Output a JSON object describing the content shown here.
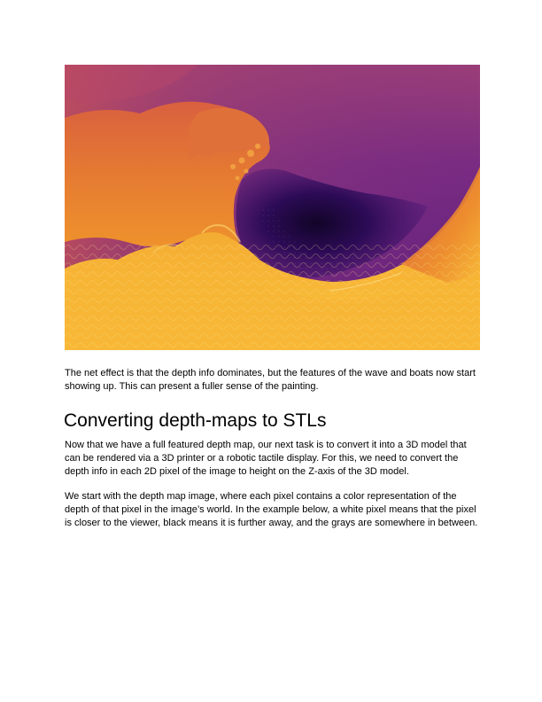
{
  "figure": {
    "subject": "depth-map-wave-image",
    "colors": {
      "deep": "#2a0a4f",
      "dark_violet": "#4a1570",
      "purple": "#6d2482",
      "magenta": "#953a7c",
      "red_orange": "#d05a45",
      "orange": "#ec8a2e",
      "yellow": "#f9c13a"
    }
  },
  "body": {
    "paragraph_1": "The net effect is that the depth info dominates, but the features of the wave and boats now start showing up. This can present a fuller sense of the painting.",
    "heading": "Converting depth-maps to STLs",
    "paragraph_2": "Now that we have a full featured depth map, our next task is to convert it into a 3D model that can be rendered via a 3D printer or a robotic tactile display. For this, we need to convert the depth info in each 2D pixel of the image to height on the Z-axis of the 3D model.",
    "paragraph_3": "We start with the depth map image, where each pixel contains a color representation of the depth of that pixel in the image’s world. In the example below, a white pixel means that the pixel is closer to the viewer, black means it is further away, and the grays are somewhere in between."
  }
}
